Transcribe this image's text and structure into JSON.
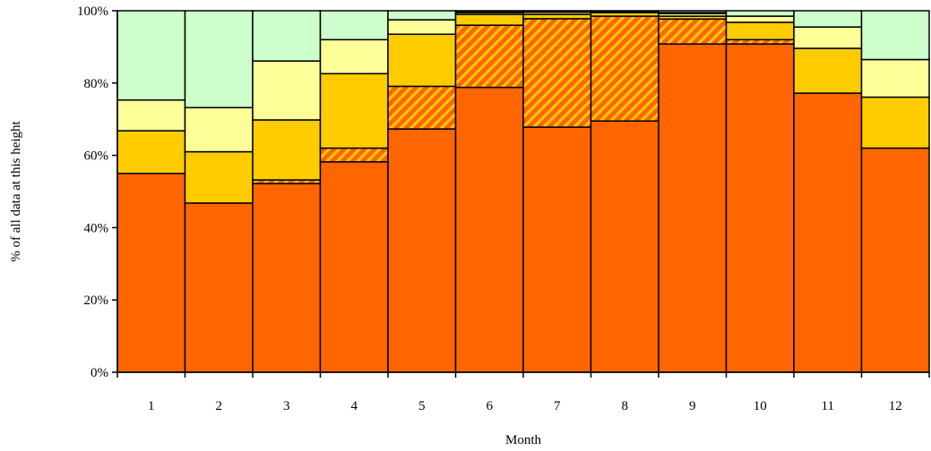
{
  "chart_data": {
    "type": "bar",
    "stacked": true,
    "normalized": true,
    "title": "",
    "xlabel": "Month",
    "ylabel": "% of all data at this height",
    "categories": [
      "1",
      "2",
      "3",
      "4",
      "5",
      "6",
      "7",
      "8",
      "9",
      "10",
      "11",
      "12"
    ],
    "y_ticks": [
      "0%",
      "20%",
      "40%",
      "60%",
      "80%",
      "100%"
    ],
    "ylim": [
      0,
      100
    ],
    "grid": false,
    "legend": "none",
    "series": [
      {
        "color": "#FF6600",
        "pattern": "solid",
        "values": [
          55.0,
          46.8,
          52.2,
          58.2,
          67.3,
          78.8,
          67.8,
          69.5,
          90.8,
          90.8,
          77.2,
          62.0
        ]
      },
      {
        "color": "#FF6600",
        "pattern": "hatched",
        "values": [
          0,
          0,
          1.0,
          3.8,
          11.8,
          17.2,
          30.0,
          29.0,
          6.9,
          1.2,
          0,
          0
        ]
      },
      {
        "color": "#FFCC00",
        "pattern": "solid",
        "values": [
          11.8,
          14.2,
          16.6,
          20.6,
          14.4,
          3.0,
          1.2,
          1.0,
          0.8,
          4.8,
          12.4,
          14.1
        ]
      },
      {
        "color": "#FFFF99",
        "pattern": "solid",
        "values": [
          8.5,
          12.2,
          16.3,
          9.4,
          4.0,
          0.5,
          0.6,
          0.3,
          0.7,
          1.7,
          5.9,
          10.4
        ]
      },
      {
        "color": "#000000",
        "pattern": "solid",
        "values": [
          0,
          0,
          0,
          0,
          0,
          0.3,
          0.2,
          0,
          0.3,
          0,
          0,
          0
        ]
      },
      {
        "color": "#CCFFCC",
        "pattern": "solid",
        "values": [
          24.7,
          26.8,
          13.9,
          8.0,
          2.5,
          0.2,
          0.2,
          0.2,
          0.5,
          1.5,
          4.5,
          13.5
        ]
      }
    ]
  }
}
